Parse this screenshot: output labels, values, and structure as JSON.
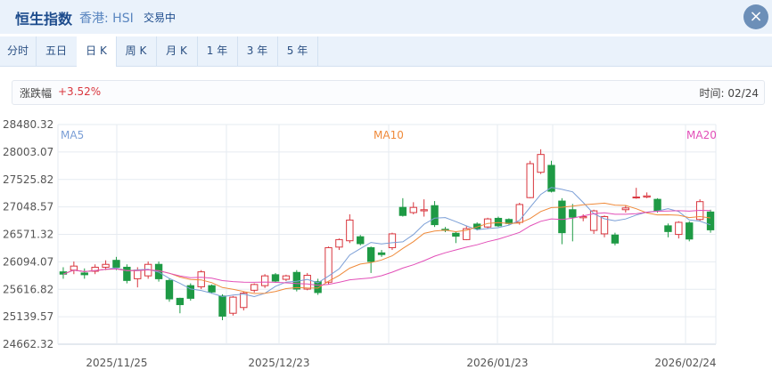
{
  "header": {
    "title": "恒生指数",
    "subtitle": "香港: HSI",
    "status": "交易中",
    "close_icon": "×"
  },
  "tabs": [
    {
      "label": "分时",
      "active": false
    },
    {
      "label": "五日",
      "active": false
    },
    {
      "label": "日 K",
      "active": true
    },
    {
      "label": "周 K",
      "active": false
    },
    {
      "label": "月 K",
      "active": false
    },
    {
      "label": "1 年",
      "active": false
    },
    {
      "label": "3 年",
      "active": false
    },
    {
      "label": "5 年",
      "active": false
    }
  ],
  "summary": {
    "label": "涨跌幅",
    "change": "+3.52%",
    "time": "时间: 02/24"
  },
  "colors": {
    "up": "#d9363e",
    "down": "#1e9a45",
    "ma5": "#7a9ed6",
    "ma10": "#ef8a3a",
    "ma20": "#e24fb8"
  },
  "chart_data": {
    "type": "candlestick",
    "y_ticks": [
      "28480.32",
      "28003.07",
      "27525.82",
      "27048.57",
      "26571.32",
      "26094.07",
      "25616.82",
      "25139.57",
      "24662.32"
    ],
    "ylim": [
      24662.32,
      28480.32
    ],
    "x_ticks": [
      "2025/11/25",
      "2025/12/23",
      "2026/01/23",
      "2026/02/24"
    ],
    "legend": [
      "MA5",
      "MA10",
      "MA20"
    ],
    "grid": true,
    "candles": [
      [
        25920,
        25880,
        26000,
        25800
      ],
      [
        25950,
        26020,
        26100,
        25880
      ],
      [
        25900,
        25870,
        25980,
        25800
      ],
      [
        25930,
        26000,
        26050,
        25880
      ],
      [
        26000,
        26050,
        26120,
        25950
      ],
      [
        26120,
        26000,
        26180,
        25950
      ],
      [
        26000,
        25770,
        26050,
        25720
      ],
      [
        25800,
        25950,
        26000,
        25650
      ],
      [
        25850,
        26050,
        26100,
        25800
      ],
      [
        26050,
        25800,
        26100,
        25750
      ],
      [
        25770,
        25450,
        25800,
        25400
      ],
      [
        25460,
        25350,
        25470,
        25200
      ],
      [
        25680,
        25460,
        25720,
        25420
      ],
      [
        25660,
        25920,
        25950,
        25620
      ],
      [
        25680,
        25570,
        25700,
        25540
      ],
      [
        25500,
        25150,
        25530,
        25080
      ],
      [
        25200,
        25480,
        25500,
        25160
      ],
      [
        25300,
        25550,
        25580,
        25250
      ],
      [
        25600,
        25700,
        25720,
        25560
      ],
      [
        25680,
        25850,
        25880,
        25640
      ],
      [
        25870,
        25760,
        25900,
        25730
      ],
      [
        25790,
        25850,
        25870,
        25760
      ],
      [
        25910,
        25620,
        25950,
        25580
      ],
      [
        25620,
        25860,
        25900,
        25600
      ],
      [
        25750,
        25560,
        25800,
        25520
      ],
      [
        25740,
        26340,
        26360,
        25700
      ],
      [
        26350,
        26480,
        26500,
        26300
      ],
      [
        26460,
        26820,
        26920,
        26420
      ],
      [
        26530,
        26410,
        26560,
        26380
      ],
      [
        26340,
        26100,
        26360,
        25900
      ],
      [
        26250,
        26220,
        26300,
        26180
      ],
      [
        26340,
        26580,
        26600,
        26300
      ],
      [
        27040,
        26900,
        27200,
        26880
      ],
      [
        26950,
        27040,
        27130,
        26920
      ],
      [
        26980,
        27000,
        27180,
        26880
      ],
      [
        27070,
        26740,
        27150,
        26700
      ],
      [
        26660,
        26640,
        26700,
        26610
      ],
      [
        26590,
        26540,
        26620,
        26420
      ],
      [
        26480,
        26670,
        26720,
        26470
      ],
      [
        26750,
        26670,
        26780,
        26640
      ],
      [
        26700,
        26840,
        26860,
        26680
      ],
      [
        26850,
        26720,
        26880,
        26700
      ],
      [
        26830,
        26760,
        26850,
        26740
      ],
      [
        26780,
        27090,
        27120,
        26740
      ],
      [
        27210,
        27800,
        27850,
        27200
      ],
      [
        27650,
        27960,
        28050,
        27620
      ],
      [
        27770,
        27320,
        27850,
        27300
      ],
      [
        27150,
        26600,
        27200,
        26400
      ],
      [
        27000,
        26870,
        27100,
        26450
      ],
      [
        26860,
        26880,
        26920,
        26800
      ],
      [
        26640,
        26980,
        27000,
        26580
      ],
      [
        26580,
        26880,
        26900,
        26520
      ],
      [
        26560,
        26420,
        26600,
        26380
      ],
      [
        27000,
        27030,
        27080,
        26950
      ],
      [
        27220,
        27220,
        27380,
        27190
      ],
      [
        27220,
        27240,
        27300,
        27200
      ],
      [
        27180,
        26980,
        27200,
        26950
      ],
      [
        26720,
        26620,
        26760,
        26520
      ],
      [
        26570,
        26780,
        26800,
        26500
      ],
      [
        26770,
        26490,
        26800,
        26450
      ],
      [
        26830,
        27140,
        27180,
        26800
      ],
      [
        26960,
        26650,
        27000,
        26600
      ]
    ]
  }
}
